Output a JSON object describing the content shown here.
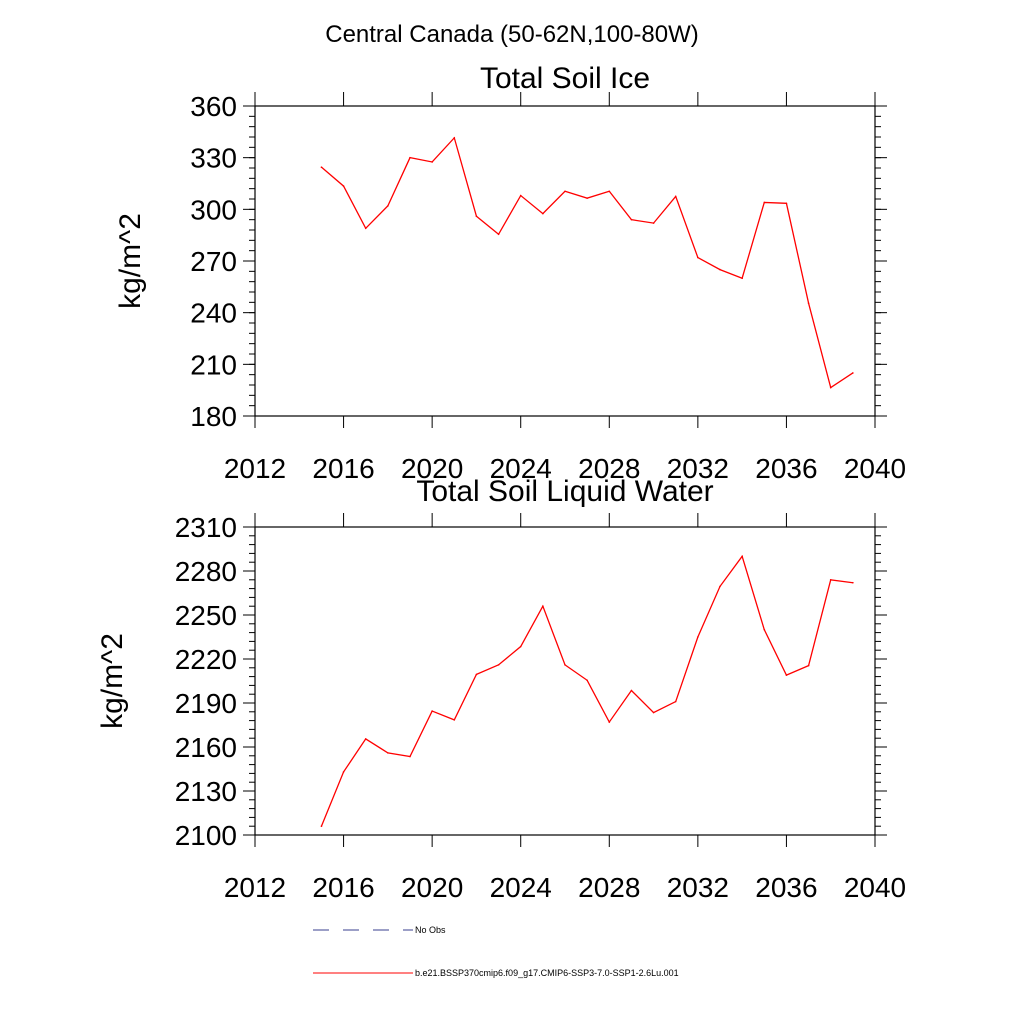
{
  "main_title": "Central Canada (50-62N,100-80W)",
  "chart_data": [
    {
      "type": "line",
      "title": "Total Soil Ice",
      "xlabel": "",
      "ylabel": "kg/m^2",
      "xlim": [
        2012,
        2040
      ],
      "ylim": [
        180,
        360
      ],
      "x_ticks": [
        2012,
        2016,
        2020,
        2024,
        2028,
        2032,
        2036,
        2040
      ],
      "y_ticks": [
        180,
        210,
        240,
        270,
        300,
        330,
        360
      ],
      "grid": false,
      "series": [
        {
          "name": "b.e21.BSSP370cmip6.f09_g17.CMIP6-SSP3-7.0-SSP1-2.6Lu.001",
          "color": "#ff0000",
          "x": [
            2015,
            2016,
            2017,
            2018,
            2019,
            2020,
            2021,
            2022,
            2023,
            2024,
            2025,
            2026,
            2027,
            2028,
            2029,
            2030,
            2031,
            2032,
            2033,
            2034,
            2035,
            2036,
            2037,
            2038,
            2039
          ],
          "y": [
            324.5,
            313.5,
            289,
            302,
            330,
            327.5,
            341.5,
            296,
            285.5,
            308,
            297.5,
            310.5,
            306.5,
            310.5,
            294,
            292,
            307.5,
            272,
            265,
            260,
            304,
            303.5,
            245.5,
            196.5,
            205
          ]
        }
      ]
    },
    {
      "type": "line",
      "title": "Total Soil Liquid Water",
      "xlabel": "",
      "ylabel": "kg/m^2",
      "xlim": [
        2012,
        2040
      ],
      "ylim": [
        2100,
        2310
      ],
      "x_ticks": [
        2012,
        2016,
        2020,
        2024,
        2028,
        2032,
        2036,
        2040
      ],
      "y_ticks": [
        2100,
        2130,
        2160,
        2190,
        2220,
        2250,
        2280,
        2310
      ],
      "grid": false,
      "series": [
        {
          "name": "b.e21.BSSP370cmip6.f09_g17.CMIP6-SSP3-7.0-SSP1-2.6Lu.001",
          "color": "#ff0000",
          "x": [
            2015,
            2016,
            2017,
            2018,
            2019,
            2020,
            2021,
            2022,
            2023,
            2024,
            2025,
            2026,
            2027,
            2028,
            2029,
            2030,
            2031,
            2032,
            2033,
            2034,
            2035,
            2036,
            2037,
            2038,
            2039
          ],
          "y": [
            2106,
            2143,
            2165.5,
            2156,
            2153.5,
            2184.5,
            2178.5,
            2209.5,
            2216,
            2228.5,
            2256,
            2216,
            2205.5,
            2177,
            2198.5,
            2183.5,
            2191,
            2235,
            2269.5,
            2290,
            2240,
            2209,
            2215.5,
            2274,
            2272
          ]
        }
      ]
    }
  ],
  "legend": {
    "placement": "bottom",
    "items": [
      {
        "label": "No Obs",
        "style": "dashed",
        "color": "#3a3f8f"
      },
      {
        "label": "b.e21.BSSP370cmip6.f09_g17.CMIP6-SSP3-7.0-SSP1-2.6Lu.001",
        "style": "solid",
        "color": "#ff0000"
      }
    ]
  }
}
